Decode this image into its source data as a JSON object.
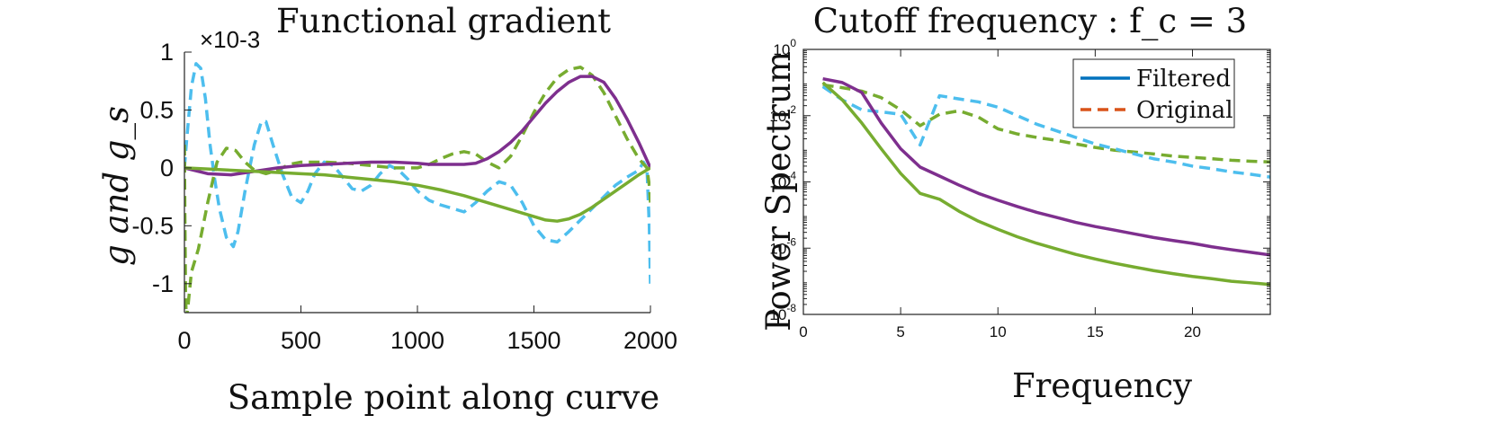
{
  "chart_data": [
    {
      "type": "line",
      "title": "Functional gradient",
      "xlabel": "Sample point along curve",
      "ylabel": "g and g_s",
      "exponent_label": "×10-3",
      "xlim": [
        0,
        2000
      ],
      "ylim": [
        -1.25,
        1.0
      ],
      "x_ticks": [
        0,
        500,
        1000,
        1500,
        2000
      ],
      "x_tick_labels": [
        "0",
        "500",
        "1000",
        "1500",
        "2000"
      ],
      "y_ticks": [
        -1,
        -0.5,
        0,
        0.5,
        1
      ],
      "y_tick_labels": [
        "-1",
        "-0.5",
        "0",
        "0.5",
        "1"
      ],
      "series": [
        {
          "color": "#4DBEEE",
          "style": "dashed",
          "x": [
            0,
            10,
            30,
            50,
            70,
            90,
            110,
            130,
            150,
            180,
            210,
            230,
            260,
            300,
            330,
            350,
            380,
            420,
            460,
            500,
            530,
            560,
            600,
            640,
            680,
            720,
            760,
            800,
            840,
            880,
            920,
            960,
            1000,
            1050,
            1100,
            1150,
            1200,
            1250,
            1300,
            1350,
            1400,
            1450,
            1500,
            1550,
            1600,
            1650,
            1700,
            1750,
            1800,
            1850,
            1900,
            1950,
            1970,
            1985,
            1995,
            2000
          ],
          "y": [
            0.0,
            0.25,
            0.7,
            0.9,
            0.86,
            0.6,
            0.2,
            -0.1,
            -0.35,
            -0.6,
            -0.68,
            -0.55,
            -0.2,
            0.2,
            0.4,
            0.4,
            0.2,
            -0.05,
            -0.25,
            -0.3,
            -0.2,
            -0.05,
            0.05,
            0.02,
            -0.08,
            -0.18,
            -0.2,
            -0.15,
            -0.05,
            0.02,
            -0.02,
            -0.1,
            -0.2,
            -0.28,
            -0.32,
            -0.35,
            -0.38,
            -0.3,
            -0.2,
            -0.12,
            -0.15,
            -0.3,
            -0.5,
            -0.62,
            -0.64,
            -0.55,
            -0.45,
            -0.35,
            -0.25,
            -0.15,
            -0.08,
            -0.02,
            0.05,
            0.0,
            -0.5,
            -1.0
          ]
        },
        {
          "color": "#77AC30",
          "style": "dashed",
          "x": [
            0,
            2,
            5,
            8,
            15,
            30,
            60,
            100,
            140,
            180,
            220,
            260,
            300,
            350,
            400,
            450,
            500,
            600,
            700,
            800,
            900,
            1000,
            1050,
            1100,
            1150,
            1200,
            1250,
            1300,
            1350,
            1400,
            1450,
            1500,
            1550,
            1600,
            1650,
            1700,
            1750,
            1800,
            1850,
            1900,
            1950,
            1985,
            1995,
            2000
          ],
          "y": [
            0.2,
            -0.4,
            -1.1,
            -1.3,
            -1.2,
            -0.9,
            -0.7,
            -0.3,
            0.05,
            0.17,
            0.15,
            0.05,
            -0.02,
            -0.05,
            -0.02,
            0.03,
            0.05,
            0.05,
            0.04,
            0.02,
            0.0,
            0.0,
            0.03,
            0.08,
            0.12,
            0.14,
            0.12,
            0.05,
            0.0,
            0.1,
            0.28,
            0.48,
            0.65,
            0.78,
            0.85,
            0.87,
            0.8,
            0.65,
            0.45,
            0.25,
            0.08,
            0.0,
            -0.15,
            -0.3
          ]
        },
        {
          "color": "#7E2F8E",
          "style": "solid",
          "x": [
            0,
            100,
            200,
            300,
            400,
            500,
            600,
            700,
            800,
            900,
            1000,
            1050,
            1100,
            1150,
            1200,
            1250,
            1300,
            1350,
            1400,
            1450,
            1500,
            1550,
            1600,
            1650,
            1700,
            1750,
            1800,
            1850,
            1900,
            1950,
            2000
          ],
          "y": [
            0.0,
            -0.05,
            -0.06,
            -0.03,
            0.0,
            0.02,
            0.03,
            0.04,
            0.05,
            0.05,
            0.04,
            0.03,
            0.03,
            0.03,
            0.03,
            0.04,
            0.08,
            0.14,
            0.22,
            0.32,
            0.44,
            0.56,
            0.66,
            0.74,
            0.79,
            0.79,
            0.74,
            0.6,
            0.42,
            0.22,
            0.0
          ]
        },
        {
          "color": "#77AC30",
          "style": "solid",
          "x": [
            0,
            100,
            200,
            300,
            400,
            500,
            600,
            700,
            800,
            900,
            1000,
            1100,
            1200,
            1300,
            1400,
            1500,
            1550,
            1600,
            1650,
            1700,
            1750,
            1800,
            1850,
            1900,
            1950,
            2000
          ],
          "y": [
            0.0,
            -0.01,
            -0.02,
            -0.03,
            -0.04,
            -0.05,
            -0.06,
            -0.08,
            -0.1,
            -0.12,
            -0.15,
            -0.19,
            -0.24,
            -0.3,
            -0.36,
            -0.42,
            -0.45,
            -0.46,
            -0.44,
            -0.4,
            -0.34,
            -0.27,
            -0.2,
            -0.13,
            -0.06,
            0.0
          ]
        }
      ]
    },
    {
      "type": "line",
      "title": "Cutoff frequency : f_c = 3",
      "xlabel": "Frequency",
      "ylabel": "Power Spectrum",
      "yscale": "log",
      "xlim": [
        0,
        24
      ],
      "ylim": [
        1e-08,
        1
      ],
      "x_ticks": [
        0,
        5,
        10,
        15,
        20
      ],
      "x_tick_labels": [
        "0",
        "5",
        "10",
        "15",
        "20"
      ],
      "y_ticks": [
        1e-08,
        1e-06,
        0.0001,
        0.01,
        1
      ],
      "y_tick_labels": [
        [
          "10",
          "-8"
        ],
        [
          "10",
          "-6"
        ],
        [
          "10",
          "-4"
        ],
        [
          "10",
          "-2"
        ],
        [
          "10",
          "0"
        ]
      ],
      "legend": {
        "placement": "top-right",
        "entries": [
          {
            "label": "Filtered",
            "color": "#0072BD",
            "style": "solid"
          },
          {
            "label": "Original",
            "color": "#D95319",
            "style": "dashed"
          }
        ]
      },
      "series": [
        {
          "color": "#77AC30",
          "style": "dashed",
          "x": [
            1,
            2,
            3,
            4,
            5,
            6,
            7,
            8,
            9,
            10,
            11,
            12,
            13,
            14,
            15,
            16,
            17,
            18,
            19,
            20,
            21,
            22,
            23,
            24
          ],
          "y": [
            0.085,
            0.07,
            0.055,
            0.035,
            0.015,
            0.005,
            0.011,
            0.014,
            0.009,
            0.004,
            0.0028,
            0.0022,
            0.0018,
            0.0014,
            0.0011,
            0.0009,
            0.0008,
            0.0007,
            0.0006,
            0.00055,
            0.0005,
            0.00045,
            0.00042,
            0.0004
          ]
        },
        {
          "color": "#4DBEEE",
          "style": "dashed",
          "x": [
            1,
            2,
            3,
            4,
            5,
            6,
            7,
            8,
            9,
            10,
            11,
            12,
            13,
            14,
            15,
            16,
            17,
            18,
            19,
            20,
            21,
            22,
            23,
            24
          ],
          "y": [
            0.075,
            0.03,
            0.015,
            0.013,
            0.011,
            0.0013,
            0.04,
            0.032,
            0.026,
            0.018,
            0.01,
            0.0055,
            0.0035,
            0.0022,
            0.0014,
            0.001,
            0.0007,
            0.0005,
            0.0004,
            0.0003,
            0.00025,
            0.0002,
            0.00017,
            0.00014
          ]
        },
        {
          "color": "#7E2F8E",
          "style": "solid",
          "x": [
            1,
            2,
            3,
            4,
            5,
            6,
            7,
            8,
            9,
            10,
            11,
            12,
            13,
            14,
            15,
            16,
            17,
            18,
            19,
            20,
            21,
            22,
            23,
            24
          ],
          "y": [
            0.13,
            0.1,
            0.05,
            0.006,
            0.001,
            0.00028,
            0.00015,
            8e-05,
            4.5e-05,
            2.8e-05,
            1.8e-05,
            1.2e-05,
            8.5e-06,
            6e-06,
            4.5e-06,
            3.5e-06,
            2.7e-06,
            2.1e-06,
            1.7e-06,
            1.4e-06,
            1.1e-06,
            9e-07,
            7.5e-07,
            6.2e-07
          ]
        },
        {
          "color": "#77AC30",
          "style": "solid",
          "x": [
            1,
            2,
            3,
            4,
            5,
            6,
            7,
            8,
            9,
            10,
            11,
            12,
            13,
            14,
            15,
            16,
            17,
            18,
            19,
            20,
            21,
            22,
            23,
            24
          ],
          "y": [
            0.1,
            0.03,
            0.006,
            0.001,
            0.00018,
            4.5e-05,
            3e-05,
            1.3e-05,
            6.5e-06,
            3.7e-06,
            2.2e-06,
            1.4e-06,
            9.5e-07,
            6.5e-07,
            4.7e-07,
            3.5e-07,
            2.7e-07,
            2.1e-07,
            1.7e-07,
            1.4e-07,
            1.2e-07,
            1e-07,
            9e-08,
            8e-08
          ]
        }
      ]
    }
  ]
}
